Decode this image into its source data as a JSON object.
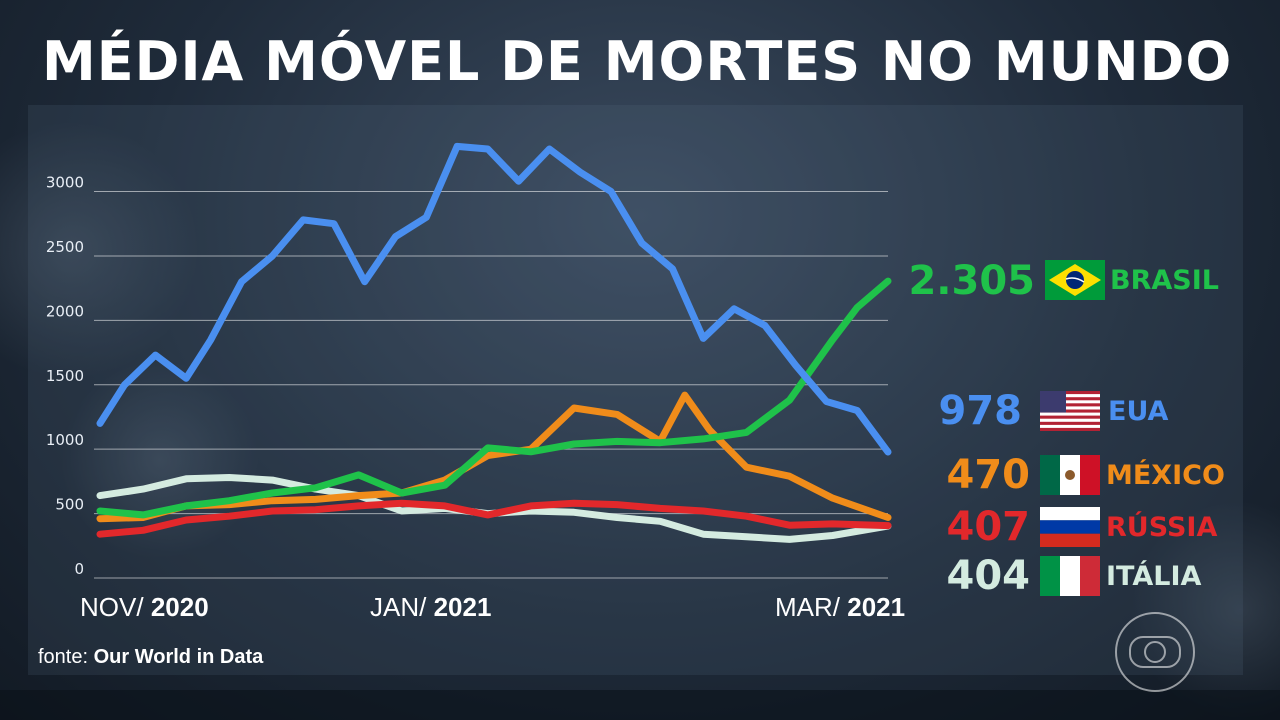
{
  "title": "MÉDIA MÓVEL DE MORTES NO MUNDO",
  "source": {
    "prefix": "fonte:",
    "name": "Our World in Data"
  },
  "x_axis": [
    {
      "month": "NOV/",
      "year": "2020"
    },
    {
      "month": "JAN/",
      "year": "2021"
    },
    {
      "month": "MAR/",
      "year": "2021"
    }
  ],
  "legend": [
    {
      "value": "2.305",
      "country": "BRASIL",
      "color": "#1fc24a",
      "flag": "brazil-flag-icon"
    },
    {
      "value": "978",
      "country": "EUA",
      "color": "#4a8ff0",
      "flag": "usa-flag-icon"
    },
    {
      "value": "470",
      "country": "MÉXICO",
      "color": "#f08c1a",
      "flag": "mexico-flag-icon"
    },
    {
      "value": "407",
      "country": "RÚSSIA",
      "color": "#e2282b",
      "flag": "russia-flag-icon"
    },
    {
      "value": "404",
      "country": "ITÁLIA",
      "color": "#d4ebe0",
      "flag": "italy-flag-icon"
    }
  ],
  "chart_data": {
    "type": "line",
    "title": "MÉDIA MÓVEL DE MORTES NO MUNDO",
    "x_range": [
      "2020-11-01",
      "2021-03-09"
    ],
    "x_ticks": [
      "NOV/ 2020",
      "JAN/ 2021",
      "MAR/ 2021"
    ],
    "ylim": [
      0,
      3400
    ],
    "y_ticks": [
      0,
      500,
      1000,
      1500,
      2000,
      2500,
      3000
    ],
    "grid": true,
    "series": [
      {
        "name": "ITÁLIA",
        "color": "#d4ebe0",
        "x": [
          "2020-11-01",
          "2020-11-08",
          "2020-11-15",
          "2020-11-22",
          "2020-11-29",
          "2020-12-06",
          "2020-12-13",
          "2020-12-20",
          "2020-12-27",
          "2021-01-03",
          "2021-01-10",
          "2021-01-17",
          "2021-01-24",
          "2021-01-31",
          "2021-02-07",
          "2021-02-14",
          "2021-02-21",
          "2021-02-28",
          "2021-03-09"
        ],
        "values": [
          640,
          690,
          770,
          780,
          760,
          690,
          640,
          520,
          540,
          500,
          520,
          510,
          470,
          440,
          340,
          320,
          300,
          330,
          404
        ]
      },
      {
        "name": "RÚSSIA",
        "color": "#e2282b",
        "x": [
          "2020-11-01",
          "2020-11-08",
          "2020-11-15",
          "2020-11-22",
          "2020-11-29",
          "2020-12-06",
          "2020-12-13",
          "2020-12-20",
          "2020-12-27",
          "2021-01-03",
          "2021-01-10",
          "2021-01-17",
          "2021-01-24",
          "2021-01-31",
          "2021-02-07",
          "2021-02-14",
          "2021-02-21",
          "2021-02-28",
          "2021-03-09"
        ],
        "values": [
          340,
          370,
          450,
          480,
          520,
          530,
          560,
          580,
          560,
          490,
          560,
          580,
          570,
          540,
          520,
          480,
          410,
          420,
          407
        ]
      },
      {
        "name": "MÉXICO",
        "color": "#f08c1a",
        "x": [
          "2020-11-01",
          "2020-11-08",
          "2020-11-15",
          "2020-11-22",
          "2020-11-29",
          "2020-12-06",
          "2020-12-13",
          "2020-12-20",
          "2020-12-27",
          "2021-01-03",
          "2021-01-10",
          "2021-01-17",
          "2021-01-24",
          "2021-01-31",
          "2021-02-04",
          "2021-02-08",
          "2021-02-14",
          "2021-02-21",
          "2021-02-28",
          "2021-03-09"
        ],
        "values": [
          460,
          470,
          560,
          570,
          600,
          610,
          640,
          660,
          760,
          950,
          1000,
          1320,
          1270,
          1060,
          1420,
          1150,
          860,
          790,
          620,
          470
        ]
      },
      {
        "name": "BRASIL",
        "color": "#1fc24a",
        "x": [
          "2020-11-01",
          "2020-11-08",
          "2020-11-15",
          "2020-11-22",
          "2020-11-29",
          "2020-12-06",
          "2020-12-13",
          "2020-12-20",
          "2020-12-27",
          "2021-01-03",
          "2021-01-10",
          "2021-01-17",
          "2021-01-24",
          "2021-01-31",
          "2021-02-07",
          "2021-02-14",
          "2021-02-21",
          "2021-02-28",
          "2021-03-04",
          "2021-03-09"
        ],
        "values": [
          520,
          490,
          560,
          600,
          660,
          700,
          800,
          660,
          720,
          1010,
          980,
          1040,
          1060,
          1050,
          1080,
          1130,
          1380,
          1850,
          2100,
          2305
        ]
      },
      {
        "name": "EUA",
        "color": "#4a8ff0",
        "x": [
          "2020-11-01",
          "2020-11-05",
          "2020-11-10",
          "2020-11-15",
          "2020-11-19",
          "2020-11-24",
          "2020-11-29",
          "2020-12-04",
          "2020-12-09",
          "2020-12-14",
          "2020-12-19",
          "2020-12-24",
          "2020-12-29",
          "2021-01-03",
          "2021-01-08",
          "2021-01-13",
          "2021-01-18",
          "2021-01-23",
          "2021-01-28",
          "2021-02-02",
          "2021-02-07",
          "2021-02-12",
          "2021-02-17",
          "2021-02-22",
          "2021-02-27",
          "2021-03-04",
          "2021-03-09"
        ],
        "values": [
          1200,
          1500,
          1730,
          1550,
          1850,
          2300,
          2500,
          2780,
          2750,
          2300,
          2650,
          2800,
          3350,
          3330,
          3080,
          3330,
          3150,
          3000,
          2600,
          2400,
          1860,
          2090,
          1960,
          1650,
          1370,
          1300,
          978
        ]
      }
    ]
  }
}
